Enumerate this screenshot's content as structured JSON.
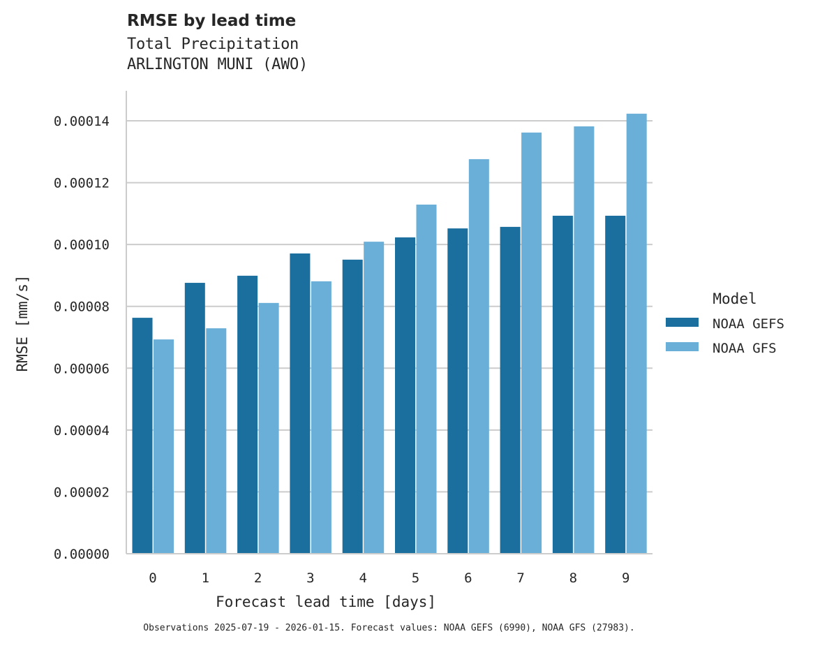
{
  "header": {
    "title": "RMSE by lead time",
    "subtitle_line1": "Total Precipitation",
    "subtitle_line2": "ARLINGTON MUNI (AWO)"
  },
  "footnote": "Observations 2025-07-19 - 2026-01-15. Forecast values: NOAA GEFS (6990), NOAA GFS (27983).",
  "legend": {
    "title": "Model",
    "items": [
      {
        "label": "NOAA GEFS",
        "color": "#1a6f9e"
      },
      {
        "label": "NOAA GFS",
        "color": "#69afd7"
      }
    ]
  },
  "chart_data": {
    "type": "bar",
    "title": "RMSE by lead time",
    "subtitle": "Total Precipitation / ARLINGTON MUNI (AWO)",
    "xlabel": "Forecast lead time [days]",
    "ylabel": "RMSE [mm/s]",
    "categories": [
      "0",
      "1",
      "2",
      "3",
      "4",
      "5",
      "6",
      "7",
      "8",
      "9"
    ],
    "series": [
      {
        "name": "NOAA GEFS",
        "color": "#1a6f9e",
        "values": [
          7.63e-05,
          8.76e-05,
          8.99e-05,
          9.71e-05,
          9.51e-05,
          0.0001023,
          0.0001052,
          0.0001057,
          0.0001093,
          0.0001093
        ]
      },
      {
        "name": "NOAA GFS",
        "color": "#69afd7",
        "values": [
          6.93e-05,
          7.29e-05,
          8.11e-05,
          8.81e-05,
          0.0001009,
          0.0001129,
          0.0001276,
          0.0001362,
          0.0001382,
          0.0001423
        ]
      }
    ],
    "ylim": [
      0,
      0.00015
    ],
    "yticks": [
      "0.00000",
      "0.00002",
      "0.00004",
      "0.00006",
      "0.00008",
      "0.00010",
      "0.00012",
      "0.00014"
    ],
    "ytick_values": [
      0,
      2e-05,
      4e-05,
      6e-05,
      8e-05,
      0.0001,
      0.00012,
      0.00014
    ],
    "grid": "horizontal",
    "legend_position": "right"
  }
}
